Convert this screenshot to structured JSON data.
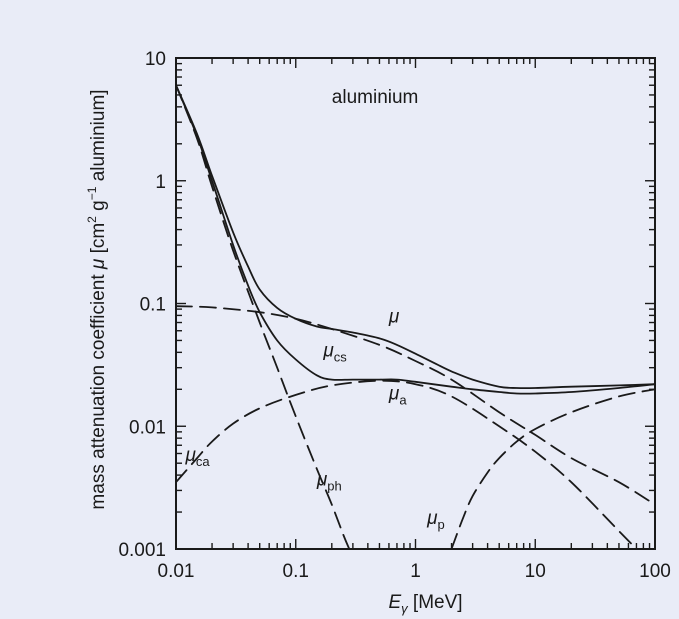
{
  "chart_data": {
    "type": "line",
    "title": "",
    "annotation": "aluminium",
    "xlabel": {
      "main": "E",
      "sub": "γ",
      "unit": " [MeV]"
    },
    "ylabel": {
      "parts": [
        {
          "t": "mass attenuation coefficient ",
          "s": "n"
        },
        {
          "t": "μ",
          "s": "i"
        },
        {
          "t": " [cm",
          "s": "n"
        },
        {
          "t": "2",
          "s": "sup"
        },
        {
          "t": " g",
          "s": "n"
        },
        {
          "t": "−1",
          "s": "sup"
        },
        {
          "t": " aluminium]",
          "s": "n"
        }
      ]
    },
    "xscale": "log",
    "yscale": "log",
    "xlim": [
      0.01,
      100
    ],
    "ylim": [
      0.001,
      10
    ],
    "xticks": [
      0.01,
      0.1,
      1,
      10,
      100
    ],
    "xtick_labels": [
      "0.01",
      "0.1",
      "1",
      "10",
      "100"
    ],
    "yticks": [
      0.001,
      0.01,
      0.1,
      1,
      10
    ],
    "ytick_labels": [
      "0.001",
      "0.01",
      "0.1",
      "1",
      "10"
    ],
    "grid": false,
    "line_color": "#1a1a1a",
    "series": [
      {
        "name": "μ",
        "label": {
          "main": "μ",
          "sub": "",
          "x": 0.6,
          "y": 0.07
        },
        "style": "solid",
        "points": [
          [
            0.01,
            6
          ],
          [
            0.015,
            2.4
          ],
          [
            0.02,
            1.1
          ],
          [
            0.03,
            0.38
          ],
          [
            0.04,
            0.2
          ],
          [
            0.05,
            0.13
          ],
          [
            0.07,
            0.092
          ],
          [
            0.1,
            0.075
          ],
          [
            0.15,
            0.065
          ],
          [
            0.2,
            0.062
          ],
          [
            0.3,
            0.058
          ],
          [
            0.5,
            0.052
          ],
          [
            0.7,
            0.046
          ],
          [
            1,
            0.039
          ],
          [
            1.5,
            0.032
          ],
          [
            2,
            0.028
          ],
          [
            3,
            0.024
          ],
          [
            5,
            0.021
          ],
          [
            7,
            0.0205
          ],
          [
            10,
            0.0205
          ],
          [
            20,
            0.021
          ],
          [
            50,
            0.0215
          ],
          [
            100,
            0.022
          ]
        ]
      },
      {
        "name": "μa",
        "label": {
          "main": "μ",
          "sub": "a",
          "x": 0.6,
          "y": 0.0165
        },
        "style": "solid",
        "points": [
          [
            0.01,
            6
          ],
          [
            0.015,
            2.3
          ],
          [
            0.02,
            1
          ],
          [
            0.03,
            0.3
          ],
          [
            0.04,
            0.14
          ],
          [
            0.05,
            0.085
          ],
          [
            0.07,
            0.05
          ],
          [
            0.1,
            0.035
          ],
          [
            0.15,
            0.026
          ],
          [
            0.2,
            0.024
          ],
          [
            0.3,
            0.024
          ],
          [
            0.5,
            0.024
          ],
          [
            0.7,
            0.024
          ],
          [
            1,
            0.023
          ],
          [
            2,
            0.021
          ],
          [
            3,
            0.02
          ],
          [
            5,
            0.019
          ],
          [
            7,
            0.0185
          ],
          [
            10,
            0.0185
          ],
          [
            20,
            0.019
          ],
          [
            50,
            0.0205
          ],
          [
            100,
            0.022
          ]
        ]
      },
      {
        "name": "μcs",
        "label": {
          "main": "μ",
          "sub": "cs",
          "x": 0.17,
          "y": 0.037
        },
        "style": "dashed",
        "points": [
          [
            0.01,
            0.095
          ],
          [
            0.02,
            0.093
          ],
          [
            0.05,
            0.085
          ],
          [
            0.1,
            0.075
          ],
          [
            0.2,
            0.062
          ],
          [
            0.5,
            0.046
          ],
          [
            1,
            0.034
          ],
          [
            2,
            0.024
          ],
          [
            5,
            0.013
          ],
          [
            10,
            0.0085
          ],
          [
            20,
            0.0055
          ],
          [
            50,
            0.0035
          ],
          [
            100,
            0.0023
          ]
        ]
      },
      {
        "name": "μca",
        "label": {
          "main": "μ",
          "sub": "ca",
          "x": 0.012,
          "y": 0.0052
        },
        "style": "dashed",
        "points": [
          [
            0.01,
            0.0035
          ],
          [
            0.015,
            0.0055
          ],
          [
            0.02,
            0.0075
          ],
          [
            0.03,
            0.0105
          ],
          [
            0.05,
            0.014
          ],
          [
            0.1,
            0.018
          ],
          [
            0.2,
            0.0215
          ],
          [
            0.5,
            0.0235
          ],
          [
            1,
            0.022
          ],
          [
            2,
            0.0175
          ],
          [
            5,
            0.01
          ],
          [
            10,
            0.0062
          ],
          [
            20,
            0.0035
          ],
          [
            50,
            0.0014
          ],
          [
            70,
            0.001
          ]
        ]
      },
      {
        "name": "μph",
        "label": {
          "main": "μ",
          "sub": "ph",
          "x": 0.15,
          "y": 0.0033
        },
        "style": "dashed",
        "points": [
          [
            0.01,
            6
          ],
          [
            0.015,
            2.2
          ],
          [
            0.02,
            0.9
          ],
          [
            0.03,
            0.27
          ],
          [
            0.05,
            0.07
          ],
          [
            0.07,
            0.03
          ],
          [
            0.1,
            0.012
          ],
          [
            0.15,
            0.0045
          ],
          [
            0.2,
            0.0023
          ],
          [
            0.25,
            0.0013
          ],
          [
            0.28,
            0.001
          ]
        ]
      },
      {
        "name": "μp",
        "label": {
          "main": "μ",
          "sub": "p",
          "x": 1.25,
          "y": 0.0016
        },
        "style": "dashed",
        "points": [
          [
            2,
            0.001
          ],
          [
            2.5,
            0.0018
          ],
          [
            3,
            0.0027
          ],
          [
            4,
            0.0042
          ],
          [
            5,
            0.0055
          ],
          [
            7,
            0.0075
          ],
          [
            10,
            0.0095
          ],
          [
            20,
            0.013
          ],
          [
            50,
            0.0175
          ],
          [
            100,
            0.02
          ]
        ]
      }
    ]
  }
}
